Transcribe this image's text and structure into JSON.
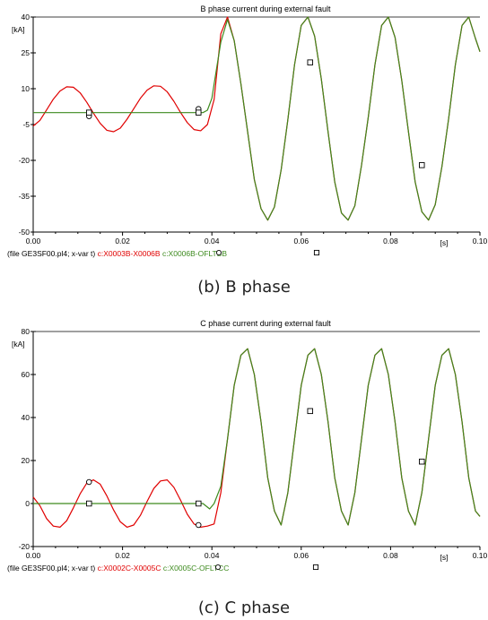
{
  "chart_data": [
    {
      "type": "line",
      "title": "B phase current during external fault",
      "yunit": "[kA]",
      "xunit": "[s]",
      "xlim": [
        0,
        0.1
      ],
      "ylim": [
        -50,
        40
      ],
      "xticks": [
        "0.00",
        "0.02",
        "0.04",
        "0.06",
        "0.08",
        "0.10"
      ],
      "yticks": [
        "40",
        "25",
        "10",
        "-5",
        "-20",
        "-35",
        "-50"
      ],
      "legend_prefix": "(file GE3SF00.pl4; x-var t)",
      "caption": "(b)  B  phase",
      "series": [
        {
          "name": "c:X0003B-X0006B",
          "color": "#e00000",
          "marker": "circle",
          "x": [
            0.0,
            0.0015,
            0.003,
            0.0045,
            0.006,
            0.0075,
            0.009,
            0.0105,
            0.012,
            0.0135,
            0.015,
            0.0165,
            0.018,
            0.0195,
            0.021,
            0.0225,
            0.024,
            0.0255,
            0.027,
            0.0285,
            0.03,
            0.0315,
            0.033,
            0.0345,
            0.036,
            0.0375,
            0.039,
            0.0405,
            0.042,
            0.0435,
            0.045,
            0.0465,
            0.048,
            0.0495,
            0.051,
            0.0525,
            0.054,
            0.0555,
            0.057,
            0.0585,
            0.06,
            0.0615,
            0.063,
            0.0645,
            0.066,
            0.0675,
            0.069,
            0.0705,
            0.072,
            0.0735,
            0.075,
            0.0765,
            0.078,
            0.0795,
            0.081,
            0.0825,
            0.084,
            0.0855,
            0.087,
            0.0885,
            0.09,
            0.0915,
            0.093,
            0.0945,
            0.096,
            0.0975,
            0.099,
            0.1
          ],
          "y": [
            -5.6,
            -3.3,
            1.1,
            5.6,
            9.0,
            10.8,
            10.6,
            8.3,
            4.3,
            -0.3,
            -4.5,
            -7.4,
            -8.0,
            -6.5,
            -2.8,
            1.6,
            6.0,
            9.4,
            11.2,
            11.0,
            8.7,
            4.7,
            0.0,
            -4.2,
            -7.1,
            -7.6,
            -5.0,
            5.5,
            33.0,
            40.0,
            30.1,
            12.0,
            -8.0,
            -28.0,
            -40.2,
            -45.0,
            -39.5,
            -24.0,
            -3.0,
            20.0,
            36.5,
            40.0,
            32.0,
            14.0,
            -8.0,
            -29.0,
            -42.0,
            -45.0,
            -39.0,
            -22.0,
            -2.0,
            20.0,
            36.5,
            40.0,
            31.5,
            13.5,
            -8.0,
            -29.0,
            -41.5,
            -45.0,
            -38.5,
            -22.5,
            -2.5,
            20.0,
            36.5,
            40.0,
            31.0,
            25.5
          ]
        },
        {
          "name": "c:X0006B-OFLTBB",
          "color": "#3d8a1e",
          "marker": "square",
          "x": [
            0.0,
            0.005,
            0.01,
            0.015,
            0.02,
            0.025,
            0.03,
            0.035,
            0.038,
            0.039,
            0.04,
            0.0405,
            0.042,
            0.0435,
            0.045,
            0.0465,
            0.048,
            0.0495,
            0.051,
            0.0525,
            0.054,
            0.0555,
            0.057,
            0.0585,
            0.06,
            0.0615,
            0.063,
            0.0645,
            0.066,
            0.0675,
            0.069,
            0.0705,
            0.072,
            0.0735,
            0.075,
            0.0765,
            0.078,
            0.0795,
            0.081,
            0.0825,
            0.084,
            0.0855,
            0.087,
            0.0885,
            0.09,
            0.0915,
            0.093,
            0.0945,
            0.096,
            0.0975,
            0.099,
            0.1
          ],
          "y": [
            0,
            0,
            0,
            0,
            0,
            0,
            0,
            0,
            0,
            1.0,
            6.0,
            12.0,
            29.5,
            39.0,
            30.1,
            12.0,
            -8.0,
            -28.0,
            -40.2,
            -45.0,
            -39.5,
            -24.0,
            -3.0,
            20.0,
            36.5,
            40.0,
            32.0,
            14.0,
            -8.0,
            -29.0,
            -42.0,
            -45.0,
            -39.0,
            -22.0,
            -2.0,
            20.0,
            36.5,
            40.0,
            31.5,
            13.5,
            -8.0,
            -29.0,
            -41.5,
            -45.0,
            -38.5,
            -22.5,
            -2.5,
            20.0,
            36.5,
            40.0,
            31.0,
            25.5
          ]
        }
      ]
    },
    {
      "type": "line",
      "title": "C phase current during external fault",
      "yunit": "[kA]",
      "xunit": "[s]",
      "xlim": [
        0,
        0.1
      ],
      "ylim": [
        -20,
        80
      ],
      "xticks": [
        "0.00",
        "0.02",
        "0.04",
        "0.06",
        "0.08",
        "0.10"
      ],
      "yticks": [
        "80",
        "60",
        "40",
        "20",
        "0",
        "-20"
      ],
      "legend_prefix": "(file GE3SF00.pl4; x-var t)",
      "caption": "(c)  C  phase",
      "series": [
        {
          "name": "c:X0002C-X0005C",
          "color": "#e00000",
          "marker": "circle",
          "x": [
            0.0,
            0.0015,
            0.003,
            0.0045,
            0.006,
            0.0075,
            0.009,
            0.0105,
            0.012,
            0.0135,
            0.015,
            0.0165,
            0.018,
            0.0195,
            0.021,
            0.0225,
            0.024,
            0.0255,
            0.027,
            0.0285,
            0.03,
            0.0315,
            0.033,
            0.0345,
            0.036,
            0.0375,
            0.039,
            0.0405,
            0.042,
            0.0435,
            0.045,
            0.0465,
            0.048,
            0.0495,
            0.051,
            0.0525,
            0.054,
            0.0555,
            0.057,
            0.0585,
            0.06,
            0.0615,
            0.063,
            0.0645,
            0.066,
            0.0675,
            0.069,
            0.0705,
            0.072,
            0.0735,
            0.075,
            0.0765,
            0.078,
            0.0795,
            0.081,
            0.0825,
            0.084,
            0.0855,
            0.087,
            0.0885,
            0.09,
            0.0915,
            0.093,
            0.0945,
            0.096,
            0.0975,
            0.099,
            0.1
          ],
          "y": [
            3.0,
            -1.0,
            -7.0,
            -10.5,
            -11.0,
            -8.0,
            -2.0,
            4.5,
            9.5,
            11.0,
            9.0,
            3.5,
            -3.0,
            -8.5,
            -11.0,
            -10.0,
            -5.5,
            1.0,
            7.0,
            10.5,
            11.0,
            7.5,
            1.5,
            -5.0,
            -9.5,
            -11.0,
            -10.5,
            -9.5,
            5.0,
            30.0,
            55.0,
            69.0,
            72.0,
            60.0,
            38.0,
            12.0,
            -3.5,
            -10.0,
            5.0,
            30.0,
            55.0,
            69.0,
            72.0,
            60.0,
            38.0,
            12.0,
            -3.5,
            -10.0,
            5.0,
            30.0,
            55.0,
            69.0,
            72.0,
            60.0,
            38.0,
            12.0,
            -3.5,
            -10.0,
            5.0,
            30.0,
            55.0,
            69.0,
            72.0,
            60.0,
            38.0,
            12.0,
            -3.5,
            -6.0
          ]
        },
        {
          "name": "c:X0005C-OFLTCC",
          "color": "#3d8a1e",
          "marker": "square",
          "x": [
            0.0,
            0.005,
            0.01,
            0.015,
            0.02,
            0.025,
            0.03,
            0.035,
            0.038,
            0.0395,
            0.0405,
            0.042,
            0.0435,
            0.045,
            0.0465,
            0.048,
            0.0495,
            0.051,
            0.0525,
            0.054,
            0.0555,
            0.057,
            0.0585,
            0.06,
            0.0615,
            0.063,
            0.0645,
            0.066,
            0.0675,
            0.069,
            0.0705,
            0.072,
            0.0735,
            0.075,
            0.0765,
            0.078,
            0.0795,
            0.081,
            0.0825,
            0.084,
            0.0855,
            0.087,
            0.0885,
            0.09,
            0.0915,
            0.093,
            0.0945,
            0.096,
            0.0975,
            0.099,
            0.1
          ],
          "y": [
            0,
            0,
            0,
            0,
            0,
            0,
            0,
            0,
            0,
            -2.5,
            0,
            8.0,
            30.0,
            55.0,
            69.0,
            72.0,
            60.0,
            38.0,
            12.0,
            -3.5,
            -10.0,
            5.0,
            30.0,
            55.0,
            69.0,
            72.0,
            60.0,
            38.0,
            12.0,
            -3.5,
            -10.0,
            5.0,
            30.0,
            55.0,
            69.0,
            72.0,
            60.0,
            38.0,
            12.0,
            -3.5,
            -10.0,
            5.0,
            30.0,
            55.0,
            69.0,
            72.0,
            60.0,
            38.0,
            12.0,
            -3.5,
            -6.0
          ]
        }
      ],
      "markers": [
        {
          "series": 0,
          "points": [
            [
              0.0125,
              10.0
            ],
            [
              0.037,
              -10.0
            ]
          ]
        },
        {
          "series": 1,
          "points": [
            [
              0.0125,
              0.0
            ],
            [
              0.037,
              0.0
            ],
            [
              0.062,
              43.0
            ],
            [
              0.087,
              19.5
            ]
          ]
        }
      ]
    }
  ],
  "panel_markers": [
    [
      {
        "series": 0,
        "points": [
          [
            0.0125,
            -1.5
          ],
          [
            0.037,
            1.5
          ]
        ]
      },
      {
        "series": 1,
        "points": [
          [
            0.0125,
            0.0
          ],
          [
            0.037,
            0.0
          ],
          [
            0.062,
            21.0
          ],
          [
            0.087,
            -22.0
          ]
        ]
      }
    ],
    [
      {
        "series": 0,
        "points": [
          [
            0.0125,
            10.0
          ],
          [
            0.037,
            -10.0
          ]
        ]
      },
      {
        "series": 1,
        "points": [
          [
            0.0125,
            0.0
          ],
          [
            0.037,
            0.0
          ],
          [
            0.062,
            43.0
          ],
          [
            0.087,
            19.5
          ]
        ]
      }
    ]
  ]
}
